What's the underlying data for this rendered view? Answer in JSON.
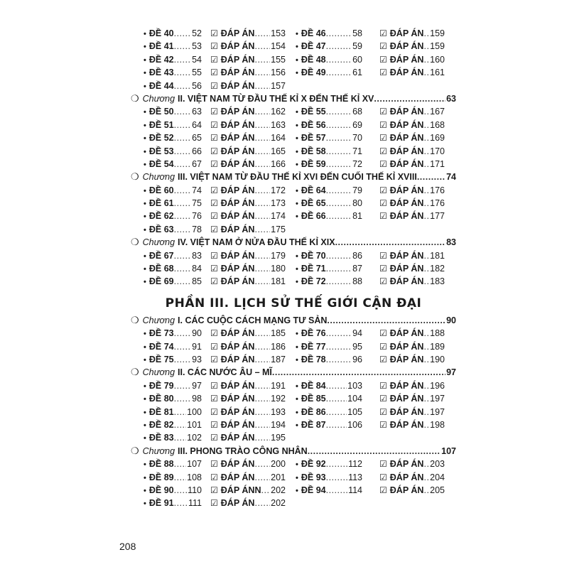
{
  "page_number": "208",
  "icons": {
    "bullet": "•",
    "answer": "checkbox-checked-icon ☑",
    "chapter": "circle-icon ○"
  },
  "blocks": [
    {
      "type": "rows",
      "rows": [
        [
          [
            "ĐỀ 40",
            "52",
            "ĐÁP ÁN",
            "153"
          ],
          [
            "ĐỀ 46",
            "58",
            "ĐÁP ÁN",
            "159"
          ]
        ],
        [
          [
            "ĐỀ 41",
            "53",
            "ĐÁP ÁN",
            "154"
          ],
          [
            "ĐỀ 47",
            "59",
            "ĐÁP ÁN",
            "159"
          ]
        ],
        [
          [
            "ĐỀ 42",
            "54",
            "ĐÁP ÁN",
            "155"
          ],
          [
            "ĐỀ 48",
            "60",
            "ĐÁP ÁN",
            "160"
          ]
        ],
        [
          [
            "ĐỀ 43",
            "55",
            "ĐÁP ÁN",
            "156"
          ],
          [
            "ĐỀ 49",
            "61",
            "ĐÁP ÁN",
            "161"
          ]
        ],
        [
          [
            "ĐỀ 44",
            "56",
            "ĐÁP ÁN",
            "157"
          ]
        ]
      ]
    },
    {
      "type": "chapter",
      "prefix": "Chương",
      "title": "II. VIỆT NAM TỪ ĐẦU THẾ KỈ X ĐẾN THẾ KỈ XV",
      "page": "63"
    },
    {
      "type": "rows",
      "rows": [
        [
          [
            "ĐỀ 50",
            "63",
            "ĐÁP ÁN",
            "162"
          ],
          [
            "ĐỀ 55",
            "68",
            "ĐÁP ÁN",
            "167"
          ]
        ],
        [
          [
            "ĐỀ 51",
            "64",
            "ĐÁP ÁN",
            "163"
          ],
          [
            "ĐỀ 56",
            "69",
            "ĐÁP ÁN",
            "168"
          ]
        ],
        [
          [
            "ĐỀ 52",
            "65",
            "ĐÁP ÁN",
            "164"
          ],
          [
            "ĐỀ 57",
            "70",
            "ĐÁP ÁN",
            "169"
          ]
        ],
        [
          [
            "ĐỀ 53",
            "66",
            "ĐÁP ÁN",
            "165"
          ],
          [
            "ĐỀ 58",
            "71",
            "ĐÁP ÁN",
            "170"
          ]
        ],
        [
          [
            "ĐỀ 54",
            "67",
            "ĐÁP ÁN",
            "166"
          ],
          [
            "ĐỀ 59",
            "72",
            "ĐÁP ÁN",
            "171"
          ]
        ]
      ]
    },
    {
      "type": "chapter",
      "prefix": "Chương",
      "title": "III. VIỆT NAM TỪ ĐẦU THẾ KỈ XVI ĐẾN CUỐI THẾ KỈ XVIII",
      "page": "74"
    },
    {
      "type": "rows",
      "rows": [
        [
          [
            "ĐỀ 60",
            "74",
            "ĐÁP ÁN",
            "172"
          ],
          [
            "ĐỀ 64",
            "79",
            "ĐÁP ÁN",
            "176"
          ]
        ],
        [
          [
            "ĐỀ 61",
            "75",
            "ĐÁP ÁN",
            "173"
          ],
          [
            "ĐỀ 65",
            "80",
            "ĐÁP ÁN",
            "176"
          ]
        ],
        [
          [
            "ĐỀ 62",
            "76",
            "ĐÁP ÁN",
            "174"
          ],
          [
            "ĐỀ 66",
            "81",
            "ĐÁP ÁN",
            "177"
          ]
        ],
        [
          [
            "ĐỀ 63",
            "78",
            "ĐÁP ÁN",
            "175"
          ]
        ]
      ]
    },
    {
      "type": "chapter",
      "prefix": "Chương",
      "title": "IV. VIỆT NAM Ở NỬA ĐẦU THẾ KỈ XIX",
      "page": "83"
    },
    {
      "type": "rows",
      "rows": [
        [
          [
            "ĐỀ 67",
            "83",
            "ĐÁP ÁN",
            "179"
          ],
          [
            "ĐỀ 70",
            "86",
            "ĐÁP ÁN",
            "181"
          ]
        ],
        [
          [
            "ĐỀ 68",
            "84",
            "ĐÁP ÁN",
            "180"
          ],
          [
            "ĐỀ 71",
            "87",
            "ĐÁP ÁN",
            "182"
          ]
        ],
        [
          [
            "ĐỀ 69",
            "85",
            "ĐÁP ÁN",
            "181"
          ],
          [
            "ĐỀ 72",
            "88",
            "ĐÁP ÁN",
            "183"
          ]
        ]
      ]
    },
    {
      "type": "part",
      "title": "PHẦN III. LỊCH SỬ THẾ GIỚI CẬN ĐẠI"
    },
    {
      "type": "chapter",
      "prefix": "Chương",
      "title": "I. CÁC CUỘC CÁCH MẠNG TƯ SẢN",
      "page": "90"
    },
    {
      "type": "rows",
      "rows": [
        [
          [
            "ĐỀ 73",
            "90",
            "ĐÁP ÁN",
            "185"
          ],
          [
            "ĐỀ 76",
            "94",
            "ĐÁP ÁN",
            "188"
          ]
        ],
        [
          [
            "ĐỀ 74",
            "91",
            "ĐÁP ÁN",
            "186"
          ],
          [
            "ĐỀ 77",
            "95",
            "ĐÁP ÁN",
            "189"
          ]
        ],
        [
          [
            "ĐỀ 75",
            "93",
            "ĐÁP ÁN",
            "187"
          ],
          [
            "ĐỀ 78",
            "96",
            "ĐÁP ÁN",
            "190"
          ]
        ]
      ]
    },
    {
      "type": "chapter",
      "prefix": "Chương",
      "title": "II. CÁC NƯỚC ÂU – MĨ",
      "page": "97"
    },
    {
      "type": "rows",
      "rows": [
        [
          [
            "ĐỀ 79",
            "97",
            "ĐÁP ÁN",
            "191"
          ],
          [
            "ĐỀ 84",
            "103",
            "ĐÁP ÁN",
            "196"
          ]
        ],
        [
          [
            "ĐỀ 80",
            "98",
            "ĐÁP ÁN",
            "192"
          ],
          [
            "ĐỀ 85",
            "104",
            "ĐÁP ÁN",
            "197"
          ]
        ],
        [
          [
            "ĐỀ 81",
            "100",
            "ĐÁP ÁN",
            "193"
          ],
          [
            "ĐỀ 86",
            "105",
            "ĐÁP ÁN",
            "197"
          ]
        ],
        [
          [
            "ĐỀ 82",
            "101",
            "ĐÁP ÁN",
            "194"
          ],
          [
            "ĐỀ 87",
            "106",
            "ĐÁP ÁN",
            "198"
          ]
        ],
        [
          [
            "ĐỀ 83",
            "102",
            "ĐÁP ÁN",
            "195"
          ]
        ]
      ]
    },
    {
      "type": "chapter",
      "prefix": "Chương",
      "title": "III. PHONG TRÀO CÔNG NHÂN",
      "page": "107"
    },
    {
      "type": "rows",
      "rows": [
        [
          [
            "ĐỀ 88",
            "107",
            "ĐÁP ÁN",
            "200"
          ],
          [
            "ĐỀ 92",
            "112",
            "ĐÁP ÁN",
            "203"
          ]
        ],
        [
          [
            "ĐỀ 89",
            "108",
            "ĐÁP ÁN",
            "201"
          ],
          [
            "ĐỀ 93",
            "113",
            "ĐÁP ÁN",
            "204"
          ]
        ],
        [
          [
            "ĐỀ 90",
            "110",
            "ĐÁP ÁNN",
            "202"
          ],
          [
            "ĐỀ 94",
            "114",
            "ĐÁP ÁN",
            "205"
          ]
        ],
        [
          [
            "ĐỀ 91",
            "111",
            "ĐÁP ÁN",
            "202"
          ]
        ]
      ]
    }
  ]
}
